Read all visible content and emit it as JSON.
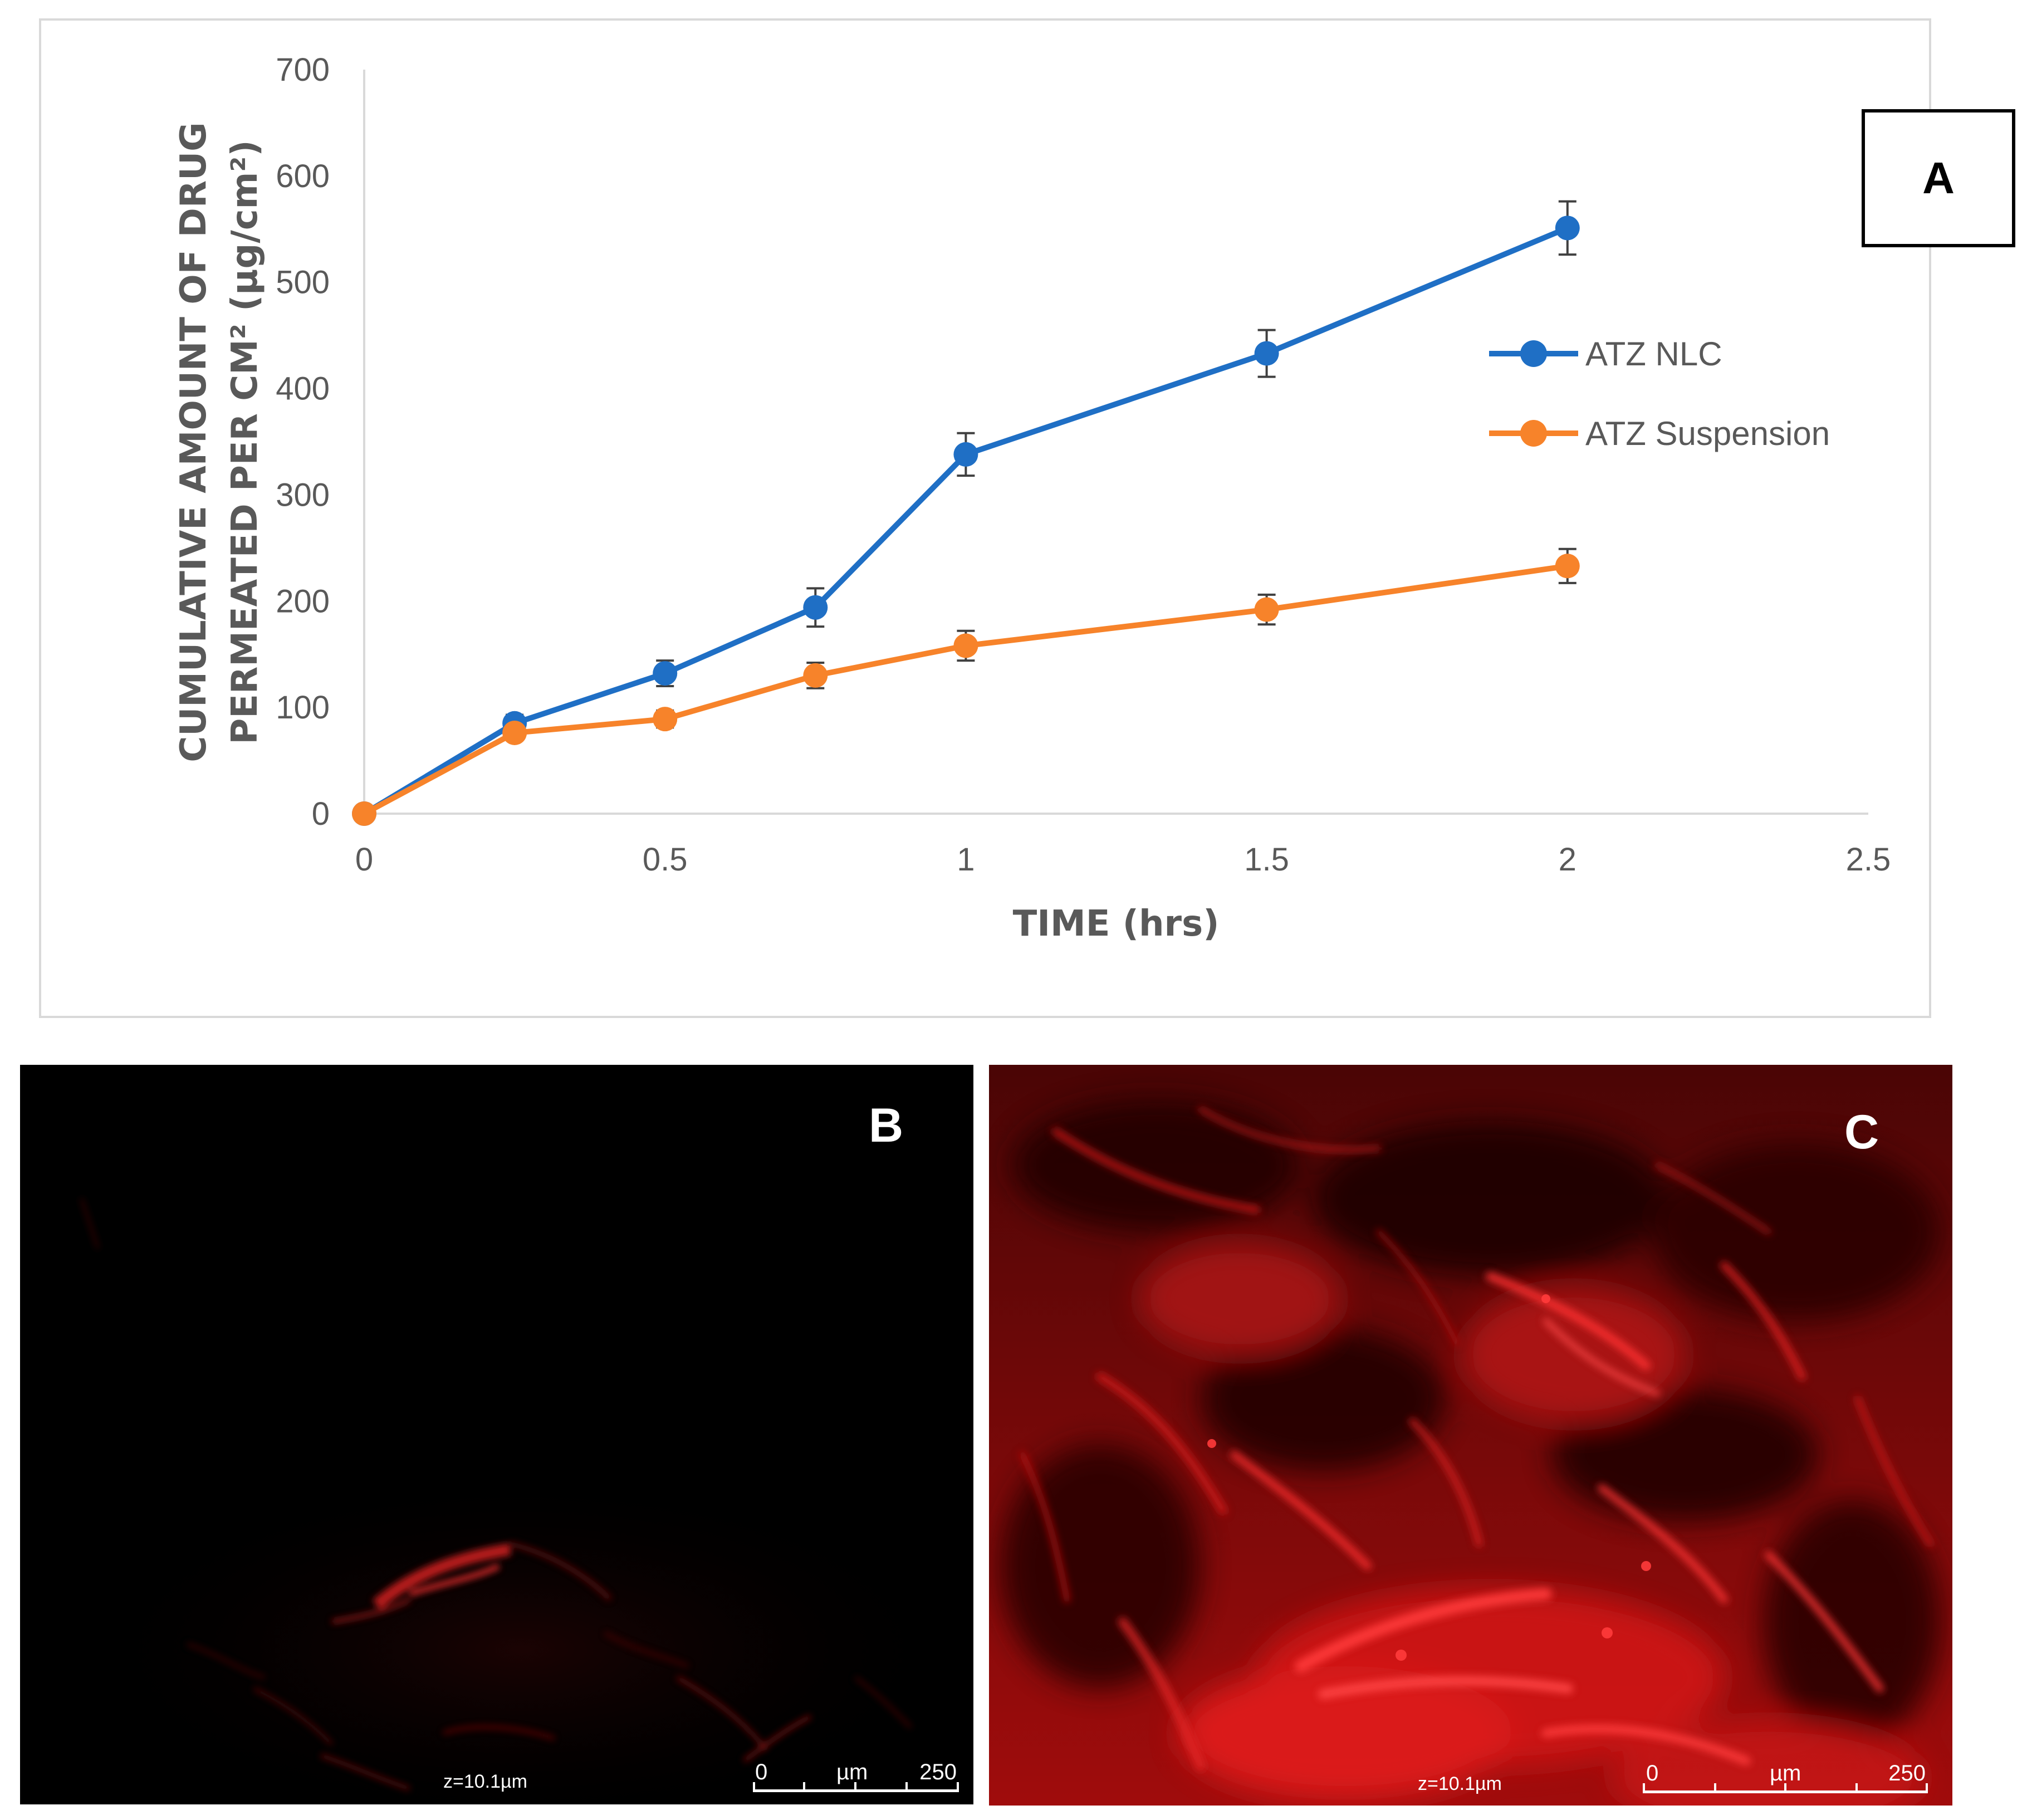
{
  "chart_data": {
    "type": "line",
    "title": "",
    "xlabel": "TIME (hrs)",
    "ylabel_line1": "CUMULATIVE AMOUNT OF DRUG",
    "ylabel_line2": "PERMEATED PER CM² (µg/cm²)",
    "xlim": [
      0,
      2.5
    ],
    "ylim": [
      0,
      700
    ],
    "x_ticks": [
      "0",
      "0.5",
      "1",
      "1.5",
      "2",
      "2.5"
    ],
    "y_ticks": [
      "0",
      "100",
      "200",
      "300",
      "400",
      "500",
      "600",
      "700"
    ],
    "grid": false,
    "legend_position": "right",
    "series": [
      {
        "name": "ATZ NLC",
        "color": "#1f6fc5",
        "x": [
          0,
          0.25,
          0.5,
          0.75,
          1,
          1.5,
          2
        ],
        "y": [
          0,
          85,
          132,
          194,
          338,
          433,
          551
        ],
        "error": [
          0,
          8,
          12,
          18,
          20,
          22,
          25
        ]
      },
      {
        "name": "ATZ Suspension",
        "color": "#f7832a",
        "x": [
          0,
          0.25,
          0.5,
          0.75,
          1,
          1.5,
          2
        ],
        "y": [
          0,
          76,
          89,
          130,
          158,
          192,
          233
        ],
        "error": [
          0,
          6,
          8,
          12,
          14,
          14,
          16
        ]
      }
    ]
  },
  "panel_labels": {
    "a": "A",
    "b": "B",
    "c": "C"
  },
  "micrographs": {
    "b": {
      "z_text": "z=10.1µm",
      "scale_start": "0",
      "scale_unit": "µm",
      "scale_end": "250"
    },
    "c": {
      "z_text": "z=10.1µm",
      "scale_start": "0",
      "scale_unit": "µm",
      "scale_end": "250"
    }
  }
}
